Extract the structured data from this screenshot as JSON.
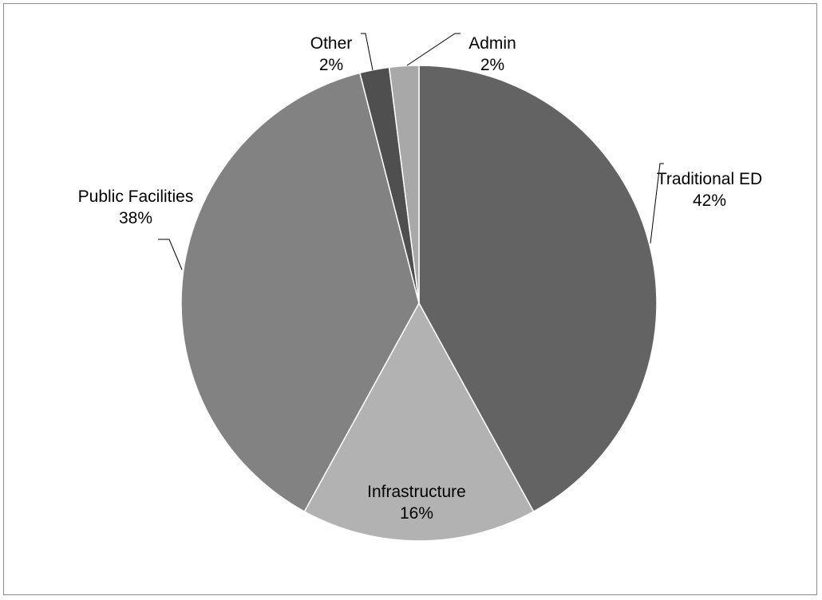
{
  "chart_data": {
    "type": "pie",
    "categories": [
      "Traditional ED",
      "Infrastructure",
      "Public Facilities",
      "Other",
      "Admin"
    ],
    "values": [
      42,
      16,
      38,
      2,
      2
    ],
    "value_labels": [
      "42%",
      "16%",
      "38%",
      "2%",
      "2%"
    ],
    "colors": [
      "#636363",
      "#b2b2b2",
      "#828282",
      "#4f4f4f",
      "#a8a8a8"
    ]
  }
}
